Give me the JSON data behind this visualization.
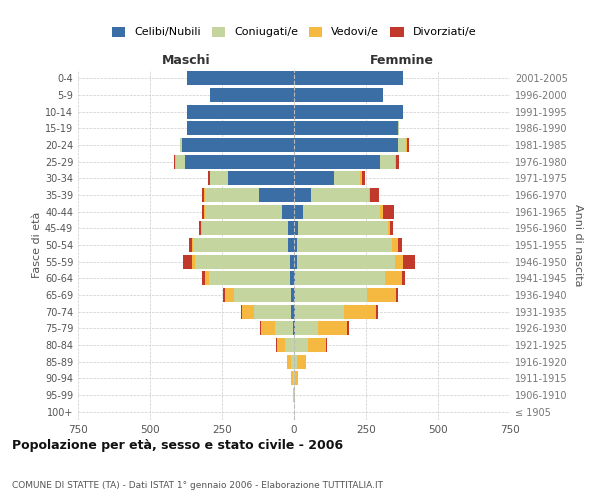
{
  "age_groups": [
    "100+",
    "95-99",
    "90-94",
    "85-89",
    "80-84",
    "75-79",
    "70-74",
    "65-69",
    "60-64",
    "55-59",
    "50-54",
    "45-49",
    "40-44",
    "35-39",
    "30-34",
    "25-29",
    "20-24",
    "15-19",
    "10-14",
    "5-9",
    "0-4"
  ],
  "birth_years": [
    "≤ 1905",
    "1906-1910",
    "1911-1915",
    "1916-1920",
    "1921-1925",
    "1926-1930",
    "1931-1935",
    "1936-1940",
    "1941-1945",
    "1946-1950",
    "1951-1955",
    "1956-1960",
    "1961-1965",
    "1966-1970",
    "1971-1975",
    "1976-1980",
    "1981-1985",
    "1986-1990",
    "1991-1995",
    "1996-2000",
    "2001-2005"
  ],
  "males": {
    "celibi": [
      0,
      0,
      0,
      0,
      0,
      5,
      10,
      10,
      15,
      15,
      20,
      20,
      40,
      120,
      230,
      380,
      390,
      370,
      370,
      290,
      370
    ],
    "coniugati": [
      0,
      2,
      5,
      10,
      30,
      60,
      130,
      200,
      280,
      330,
      330,
      300,
      270,
      190,
      60,
      30,
      5,
      0,
      0,
      0,
      0
    ],
    "vedovi": [
      0,
      2,
      5,
      15,
      30,
      50,
      40,
      30,
      15,
      10,
      5,
      3,
      3,
      3,
      3,
      3,
      2,
      0,
      0,
      0,
      0
    ],
    "divorziati": [
      0,
      0,
      0,
      0,
      3,
      3,
      5,
      5,
      8,
      30,
      8,
      8,
      8,
      8,
      5,
      5,
      0,
      0,
      0,
      0,
      0
    ]
  },
  "females": {
    "nubili": [
      0,
      0,
      0,
      0,
      0,
      5,
      5,
      5,
      5,
      10,
      10,
      15,
      30,
      60,
      140,
      300,
      360,
      360,
      380,
      310,
      380
    ],
    "coniugate": [
      0,
      2,
      5,
      10,
      50,
      80,
      170,
      250,
      310,
      340,
      330,
      310,
      270,
      200,
      90,
      50,
      30,
      5,
      0,
      0,
      0
    ],
    "vedove": [
      0,
      3,
      10,
      30,
      60,
      100,
      110,
      100,
      60,
      30,
      20,
      10,
      8,
      5,
      5,
      5,
      3,
      0,
      0,
      0,
      0
    ],
    "divorziate": [
      0,
      0,
      0,
      3,
      5,
      5,
      5,
      5,
      10,
      40,
      15,
      10,
      40,
      30,
      10,
      10,
      5,
      0,
      0,
      0,
      0
    ]
  },
  "colors": {
    "celibi": "#3A6EA5",
    "coniugati": "#C5D5A0",
    "vedovi": "#F5B942",
    "divorziati": "#C0392B"
  },
  "xlim": 750,
  "title": "Popolazione per età, sesso e stato civile - 2006",
  "subtitle": "COMUNE DI STATTE (TA) - Dati ISTAT 1° gennaio 2006 - Elaborazione TUTTITALIA.IT",
  "ylabel_left": "Fasce di età",
  "ylabel_right": "Anni di nascita",
  "xlabel_left": "Maschi",
  "xlabel_right": "Femmine",
  "legend_labels": [
    "Celibi/Nubili",
    "Coniugati/e",
    "Vedovi/e",
    "Divorziati/e"
  ],
  "background_color": "#ffffff",
  "grid_color": "#cccccc"
}
